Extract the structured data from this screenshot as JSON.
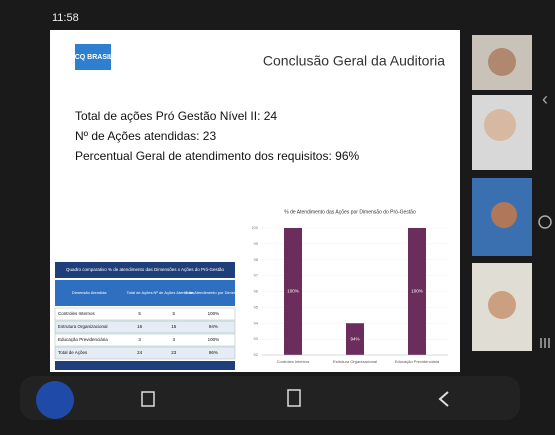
{
  "status_bar": {
    "time": "11:58"
  },
  "slide": {
    "logo": "ICQ BRASIL",
    "title": "Conclusão Geral da Auditoria",
    "summary": [
      "Total de ações Pró Gestão Nível II: 24",
      "Nº de Ações atendidas: 23",
      "Percentual Geral de atendimento dos requisitos: 96%"
    ],
    "table": {
      "title": "Quadro comparativo % de atendimento das Dimensões x Ações do Pró-Gestão",
      "header": [
        "Dimensão Atendida",
        "Total de Ações",
        "Nº de Ações Atendidas",
        "% de Atendimento por Dimensão"
      ],
      "rows": [
        [
          "Controles Internos",
          "5",
          "5",
          "100%"
        ],
        [
          "Estrutura Organizacional",
          "16",
          "15",
          "94%"
        ],
        [
          "Educação Previdenciária",
          "3",
          "3",
          "100%"
        ],
        [
          "Total de Ações",
          "24",
          "23",
          "96%"
        ]
      ]
    },
    "chart": {
      "type": "bar",
      "title": "% de Atendimento das Ações por Dimensão do Pró-Gestão",
      "categories": [
        "Controles Internos",
        "Estrutura Organizacional",
        "Educação Previdenciária"
      ],
      "values": [
        100,
        94,
        100
      ],
      "value_labels": [
        "100%",
        "94%",
        "100%"
      ],
      "color": "#6b2d5c",
      "ylim": [
        92,
        100
      ],
      "yticks": [
        92,
        93,
        94,
        95,
        96,
        97,
        98,
        99,
        100
      ]
    }
  }
}
